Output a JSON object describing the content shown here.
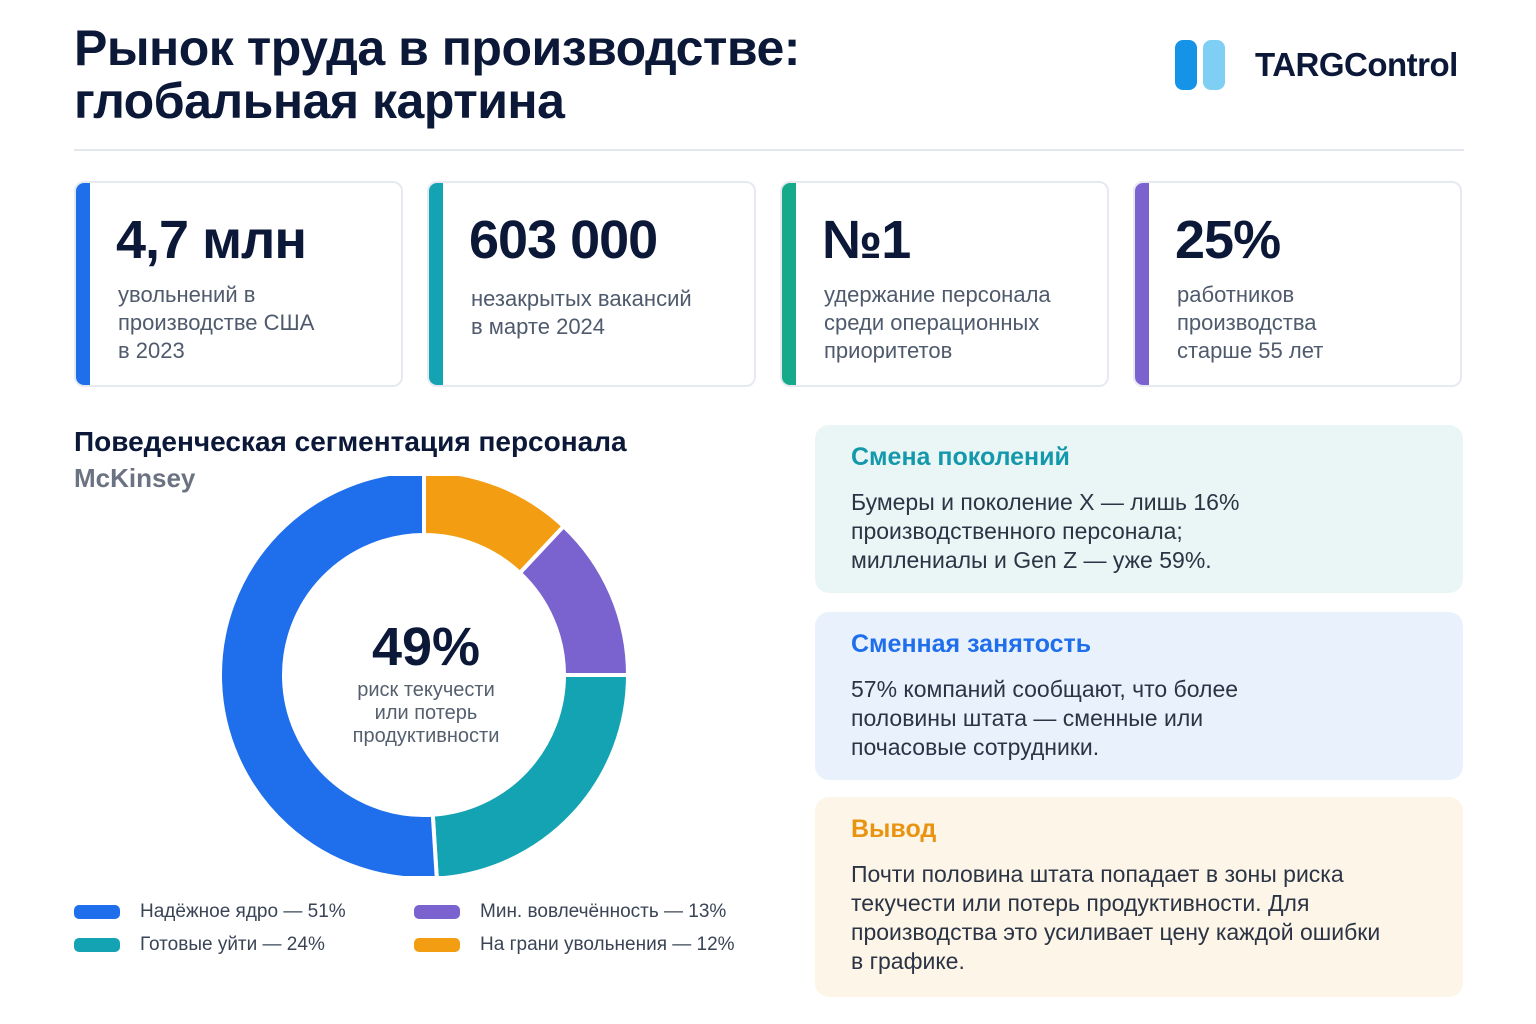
{
  "header": {
    "title_lines": [
      "Рынок труда в производстве:",
      "глобальная картина"
    ],
    "logo_text": "TARGControl"
  },
  "colors": {
    "blue": "#1f6fec",
    "teal": "#14a3b3",
    "green": "#16a98a",
    "purple": "#7b63cf",
    "orange": "#f29d12",
    "logo_dark": "#1593e6",
    "logo_light": "#7fcff4"
  },
  "stats": [
    {
      "value": "4,7 млн",
      "label_lines": [
        "увольнений в",
        "производстве США",
        "в 2023"
      ],
      "color": "#1f6fec"
    },
    {
      "value": "603 000",
      "label_lines": [
        "незакрытых вакансий",
        "в марте 2024"
      ],
      "color": "#14a3b3"
    },
    {
      "value": "№1",
      "label_lines": [
        "удержание персонала",
        "среди операционных",
        "приоритетов"
      ],
      "color": "#16a98a"
    },
    {
      "value": "25%",
      "label_lines": [
        "работников",
        "производства",
        "старше 55 лет"
      ],
      "color": "#7b63cf"
    }
  ],
  "segmentation": {
    "title": "Поведенческая сегментация персонала",
    "source": "McKinsey",
    "center_value": "49%",
    "center_label_lines": [
      "риск текучести",
      "или потерь",
      "продуктивности"
    ]
  },
  "chart_data": {
    "type": "pie",
    "title": "Поведенческая сегментация персонала",
    "categories": [
      "Надёжное ядро",
      "Готовые уйти",
      "Мин. вовлечённость",
      "На грани увольнения"
    ],
    "values": [
      51,
      24,
      13,
      12
    ],
    "colors": [
      "#1f6fec",
      "#14a3b3",
      "#7b63cf",
      "#f29d12"
    ],
    "legend_labels": [
      "Надёжное ядро — 51%",
      "Готовые уйти — 24%",
      "Мин. вовлечённость — 13%",
      "На грани увольнения — 12%"
    ],
    "legend_position": "bottom"
  },
  "cards": [
    {
      "title": "Смена поколений",
      "body_lines": [
        "Бумеры и поколение X — лишь 16%",
        "производственного персонала;",
        "миллениалы и Gen Z — уже 59%."
      ],
      "bg": "#eaf6f6",
      "title_color": "#1498ab"
    },
    {
      "title": "Сменная занятость",
      "body_lines": [
        "57% компаний сообщают, что более",
        "половины штата — сменные или",
        "почасовые сотрудники."
      ],
      "bg": "#e9f1fc",
      "title_color": "#1f6fec"
    },
    {
      "title": "Вывод",
      "body_lines": [
        "Почти половина штата попадает в зоны риска",
        "текучести или потерь продуктивности. Для",
        "производства это усиливает цену каждой ошибки",
        "в графике."
      ],
      "bg": "#fdf5e8",
      "title_color": "#e89410"
    }
  ]
}
